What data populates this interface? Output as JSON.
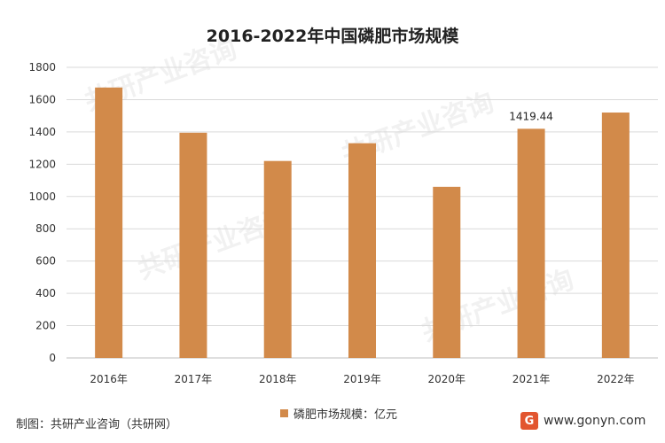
{
  "colors": {
    "bar": "#d28a4a",
    "grid": "#d9d9d9",
    "axis_text": "#333333"
  },
  "footer": {
    "source": "制图：共研产业咨询（共研网）",
    "brand_url": "www.gonyn.com",
    "brand_logo_icon": "gonyn-logo-icon"
  },
  "watermark_text": "共研产业咨询",
  "chart_data": {
    "type": "bar",
    "title": "2016-2022年中国磷肥市场规模",
    "categories": [
      "2016年",
      "2017年",
      "2018年",
      "2019年",
      "2020年",
      "2021年",
      "2022年"
    ],
    "series": [
      {
        "name": "磷肥市场规模：亿元",
        "values": [
          1675,
          1395,
          1220,
          1330,
          1060,
          1419.44,
          1520
        ]
      }
    ],
    "data_labels": [
      null,
      null,
      null,
      null,
      null,
      "1419.44",
      null
    ],
    "ylim": [
      0,
      1800
    ],
    "yticks": [
      0,
      200,
      400,
      600,
      800,
      1000,
      1200,
      1400,
      1600,
      1800
    ],
    "grid": true,
    "legend_position": "bottom"
  }
}
